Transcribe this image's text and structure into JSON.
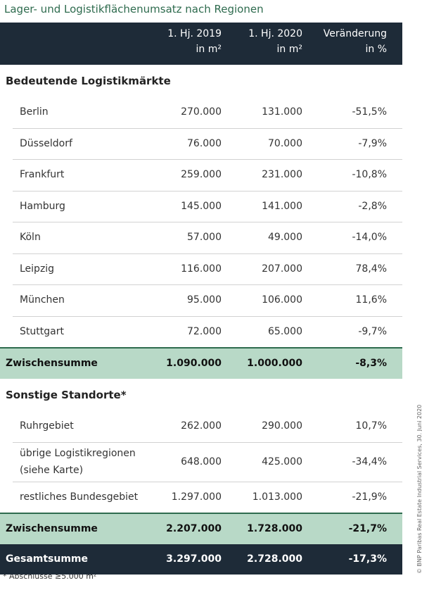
{
  "title": "Lager- und Logistikflächenumsatz nach Regionen",
  "header": {
    "columns": [
      [
        "1. Hj. 2019",
        "in m²"
      ],
      [
        "1. Hj. 2020",
        "in m²"
      ],
      [
        "Veränderung",
        "in %"
      ]
    ]
  },
  "sections": [
    {
      "heading": "Bedeutende Logistikmärkte",
      "rows": [
        [
          [
            "Berlin"
          ],
          "270.000",
          "131.000",
          "-51,5%"
        ],
        [
          [
            "Düsseldorf"
          ],
          "76.000",
          "70.000",
          "-7,9%"
        ],
        [
          [
            "Frankfurt"
          ],
          "259.000",
          "231.000",
          "-10,8%"
        ],
        [
          [
            "Hamburg"
          ],
          "145.000",
          "141.000",
          "-2,8%"
        ],
        [
          [
            "Köln"
          ],
          "57.000",
          "49.000",
          "-14,0%"
        ],
        [
          [
            "Leipzig"
          ],
          "116.000",
          "207.000",
          "78,4%"
        ],
        [
          [
            "München"
          ],
          "95.000",
          "106.000",
          "11,6%"
        ],
        [
          [
            "Stuttgart"
          ],
          "72.000",
          "65.000",
          "-9,7%"
        ]
      ],
      "subtotal": [
        "Zwischensumme",
        "1.090.000",
        "1.000.000",
        "-8,3%"
      ]
    },
    {
      "heading": "Sonstige Standorte*",
      "rows": [
        [
          [
            "Ruhrgebiet"
          ],
          "262.000",
          "290.000",
          "10,7%"
        ],
        [
          [
            "übrige Logistikregionen",
            "(siehe Karte)"
          ],
          "648.000",
          "425.000",
          "-34,4%"
        ],
        [
          [
            "restliches Bundesgebiet"
          ],
          "1.297.000",
          "1.013.000",
          "-21,9%"
        ]
      ],
      "subtotal": [
        "Zwischensumme",
        "2.207.000",
        "1.728.000",
        "-21,7%"
      ]
    }
  ],
  "total": [
    "Gesamtsumme",
    "3.297.000",
    "2.728.000",
    "-17,3%"
  ],
  "footnote": "* Abschlüsse ≥5.000 m²",
  "copyright": "© BNP Paribas Real Estate Industrial Services, 30. Juni 2020"
}
